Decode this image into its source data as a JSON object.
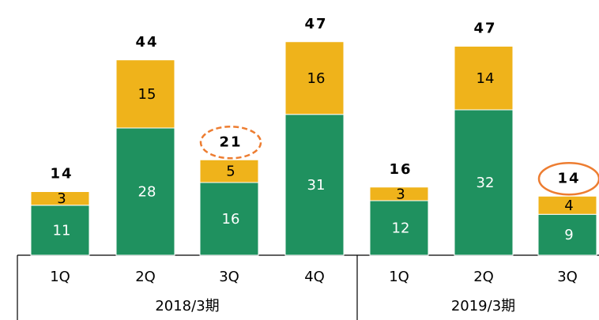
{
  "chart_data": {
    "type": "stacked_bar",
    "categories": [
      "1Q",
      "2Q",
      "3Q",
      "4Q",
      "1Q",
      "2Q",
      "3Q"
    ],
    "groups": [
      {
        "label": "2018/3期",
        "span": 4
      },
      {
        "label": "2019/3期",
        "span": 3
      }
    ],
    "series": [
      {
        "color": "#1f915f",
        "label_color": "#ffffff",
        "values": [
          11,
          28,
          16,
          31,
          12,
          32,
          9
        ]
      },
      {
        "color": "#efb31b",
        "label_color": "#000000",
        "values": [
          3,
          15,
          5,
          16,
          3,
          14,
          4
        ]
      }
    ],
    "totals": [
      14,
      44,
      21,
      47,
      16,
      47,
      14
    ],
    "highlights": [
      {
        "index": 2,
        "style": "dashed",
        "color": "#ed7d31"
      },
      {
        "index": 6,
        "style": "solid",
        "color": "#ed7d31"
      }
    ]
  }
}
